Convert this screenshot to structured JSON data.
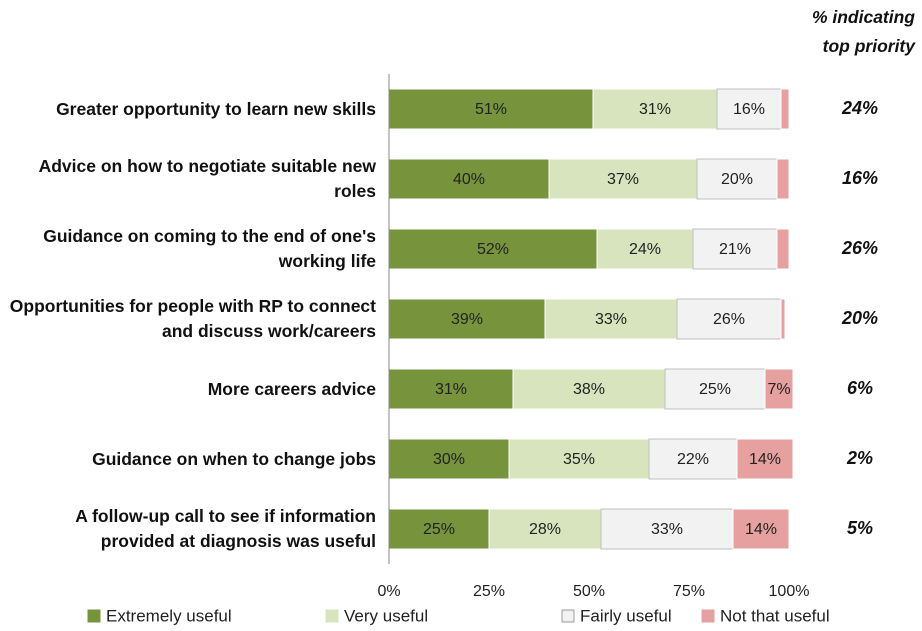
{
  "chart_data": {
    "type": "stacked_barh",
    "categories": [
      "Greater opportunity to learn new skills",
      "Advice on how to negotiate suitable new roles",
      "Guidance on coming to the end of one's working life",
      "Opportunities for people with RP to connect and discuss work/careers",
      "More careers advice",
      "Guidance on when to change jobs",
      "A follow-up call to see if information provided at diagnosis was useful"
    ],
    "series": [
      {
        "name": "Extremely useful",
        "color": "#77933c",
        "values": [
          51,
          40,
          52,
          39,
          31,
          30,
          25
        ],
        "value_labels": [
          "51%",
          "40%",
          "52%",
          "39%",
          "31%",
          "30%",
          "25%"
        ]
      },
      {
        "name": "Very useful",
        "color": "#d7e4bd",
        "values": [
          31,
          37,
          24,
          33,
          38,
          35,
          28
        ],
        "value_labels": [
          "31%",
          "37%",
          "24%",
          "33%",
          "38%",
          "35%",
          "28%"
        ]
      },
      {
        "name": "Fairly useful",
        "color": "#f2f2f2",
        "values": [
          16,
          20,
          21,
          26,
          25,
          22,
          33
        ],
        "value_labels": [
          "16%",
          "20%",
          "21%",
          "26%",
          "25%",
          "22%",
          "33%"
        ]
      },
      {
        "name": "Not that useful",
        "color": "#e6a0a0",
        "values": [
          2,
          3,
          3,
          1,
          7,
          14,
          14
        ],
        "value_labels": [
          null,
          null,
          null,
          null,
          "7%",
          "14%",
          "14%"
        ]
      }
    ],
    "xlim": [
      0,
      100
    ],
    "xticks": [
      {
        "value": 0,
        "label": "0%"
      },
      {
        "value": 25,
        "label": "25%"
      },
      {
        "value": 50,
        "label": "50%"
      },
      {
        "value": 75,
        "label": "75%"
      },
      {
        "value": 100,
        "label": "100%"
      }
    ],
    "legend": "bottom",
    "top_priority": {
      "title": "% indicating top priority",
      "values": [
        24,
        16,
        26,
        20,
        6,
        2,
        5
      ],
      "value_labels": [
        "24%",
        "16%",
        "26%",
        "20%",
        "6%",
        "2%",
        "5%"
      ]
    }
  }
}
